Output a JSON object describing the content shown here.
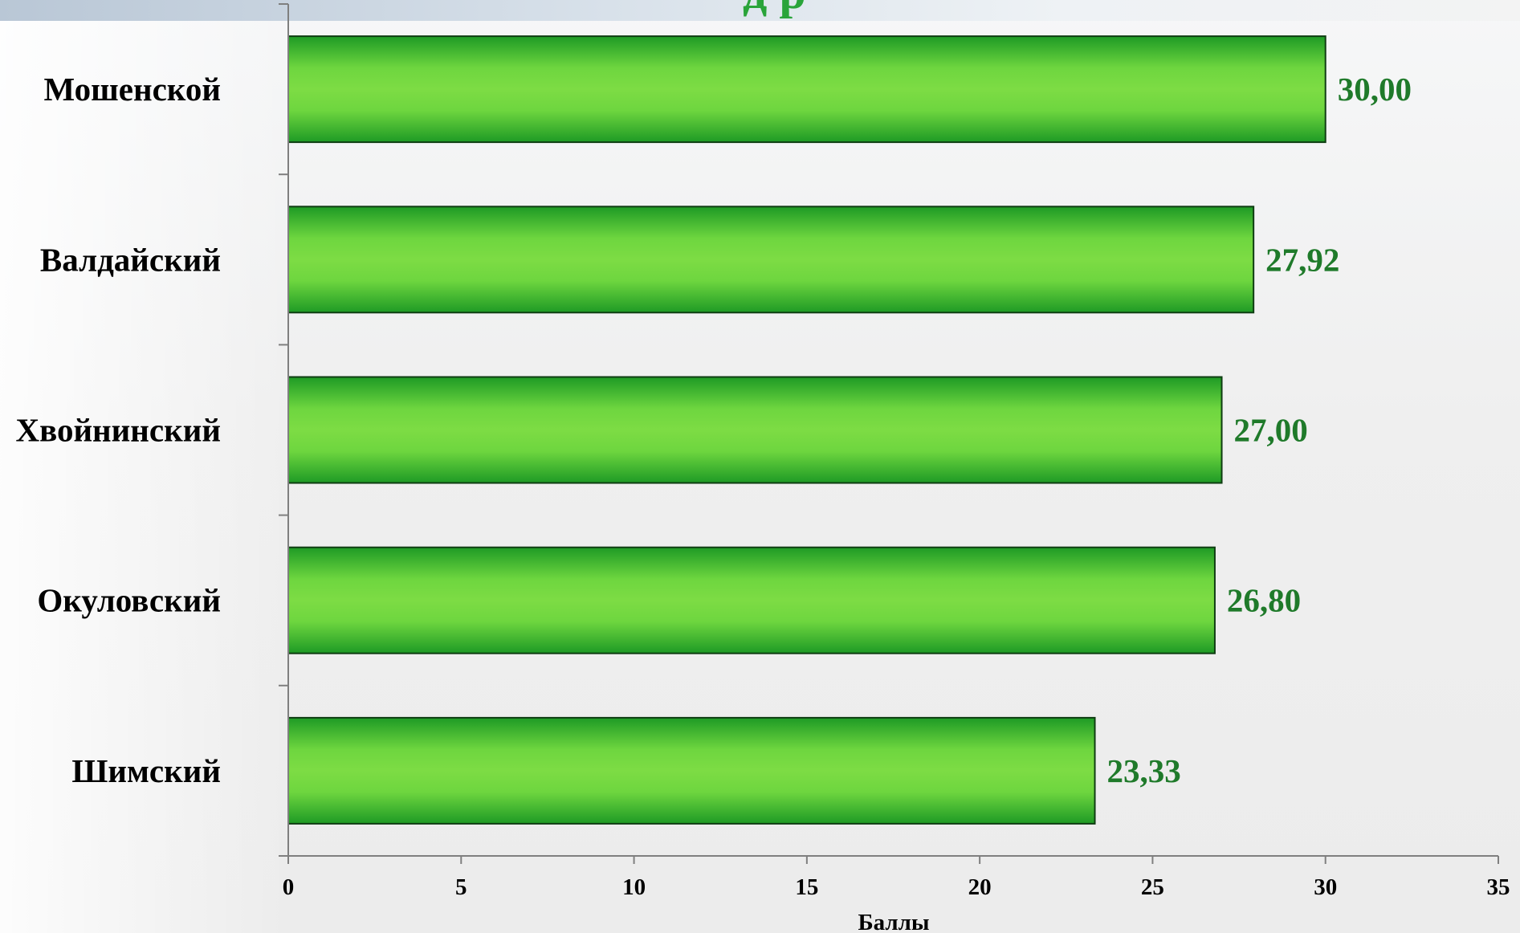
{
  "chart_data": {
    "type": "bar",
    "orientation": "horizontal",
    "title": "",
    "categories": [
      "Мошенской",
      "Валдайский",
      "Хвойнинский",
      "Окуловский",
      "Шимский"
    ],
    "values": [
      30.0,
      27.92,
      27.0,
      26.8,
      23.33
    ],
    "value_labels": [
      "30,00",
      "27,92",
      "27,00",
      "26,80",
      "23,33"
    ],
    "xlabel": "Баллы",
    "ylabel": "",
    "xlim": [
      0,
      35
    ],
    "x_ticks": [
      0,
      5,
      10,
      15,
      20,
      25,
      30,
      35
    ],
    "grid": false,
    "legend": "none",
    "colors": {
      "bar_light": "#7ddc44",
      "bar_dark": "#1e9a25",
      "bar_border": "#0f3d12",
      "value_label": "#1f7a2a",
      "axis": "#7f7f7f"
    }
  }
}
